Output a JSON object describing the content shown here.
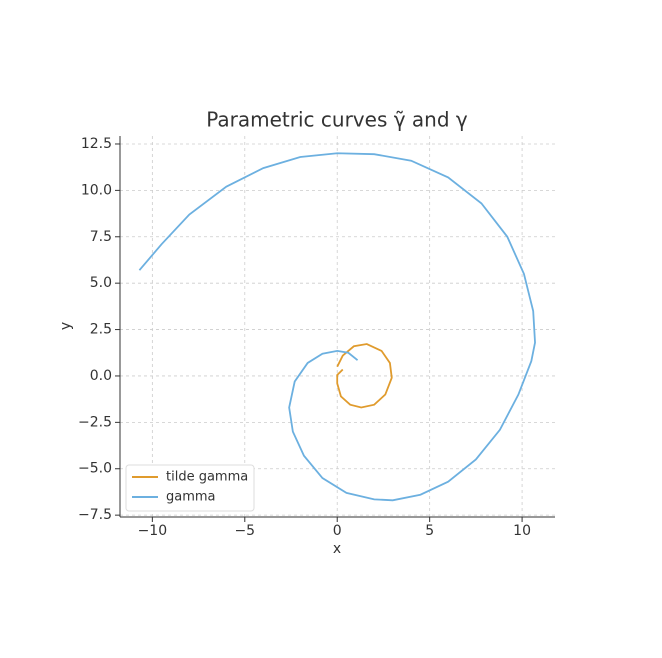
{
  "chart_data": {
    "type": "line",
    "title": "Parametric curves γ̃ and γ",
    "x_label": "x",
    "y_label": "y",
    "xlim": [
      -11.75,
      11.78
    ],
    "ylim": [
      -7.6,
      12.93
    ],
    "xticks": [
      {
        "value": -10,
        "label": "−10"
      },
      {
        "value": -5,
        "label": "−5"
      },
      0,
      5,
      10
    ],
    "yticks": [
      {
        "value": -7.5,
        "label": "−7.5"
      },
      {
        "value": -5,
        "label": "−5.0"
      },
      {
        "value": -2.5,
        "label": "−2.5"
      },
      {
        "value": 0,
        "label": "0.0"
      },
      2.5,
      {
        "value": 5,
        "label": "5.0"
      },
      7.5,
      {
        "value": 10,
        "label": "10.0"
      },
      12.5
    ],
    "grid": true,
    "legend": "lower left",
    "series": [
      {
        "name": "tilde gamma",
        "color": "#e09b2d",
        "x": [
          0.3,
          0,
          0,
          0.2,
          0.7,
          1.3,
          2.0,
          2.6,
          2.95,
          2.85,
          2.4,
          1.6,
          0.9,
          0.3,
          0
        ],
        "values": [
          0.35,
          0.05,
          -0.4,
          -1.1,
          -1.55,
          -1.7,
          -1.55,
          -1.0,
          -0.1,
          0.7,
          1.35,
          1.72,
          1.6,
          1.1,
          0.5
        ]
      },
      {
        "name": "gamma",
        "color": "#6cb0e0",
        "x": [
          1.1,
          0.6,
          0,
          -0.8,
          -1.6,
          -2.3,
          -2.6,
          -2.4,
          -1.8,
          -0.8,
          0.5,
          2,
          3,
          4.5,
          6,
          7.5,
          8.8,
          9.8,
          10.5,
          10.7,
          10.6,
          10.1,
          9.2,
          7.8,
          6,
          4,
          2,
          0,
          -2,
          -4,
          -6,
          -8,
          -9.5,
          -10.7
        ],
        "values": [
          0.85,
          1.25,
          1.35,
          1.2,
          0.7,
          -0.3,
          -1.7,
          -3.0,
          -4.3,
          -5.5,
          -6.3,
          -6.65,
          -6.7,
          -6.4,
          -5.7,
          -4.5,
          -2.9,
          -1,
          0.8,
          1.8,
          3.5,
          5.5,
          7.5,
          9.3,
          10.7,
          11.6,
          11.95,
          12,
          11.8,
          11.2,
          10.2,
          8.7,
          7.1,
          5.7
        ]
      }
    ]
  }
}
